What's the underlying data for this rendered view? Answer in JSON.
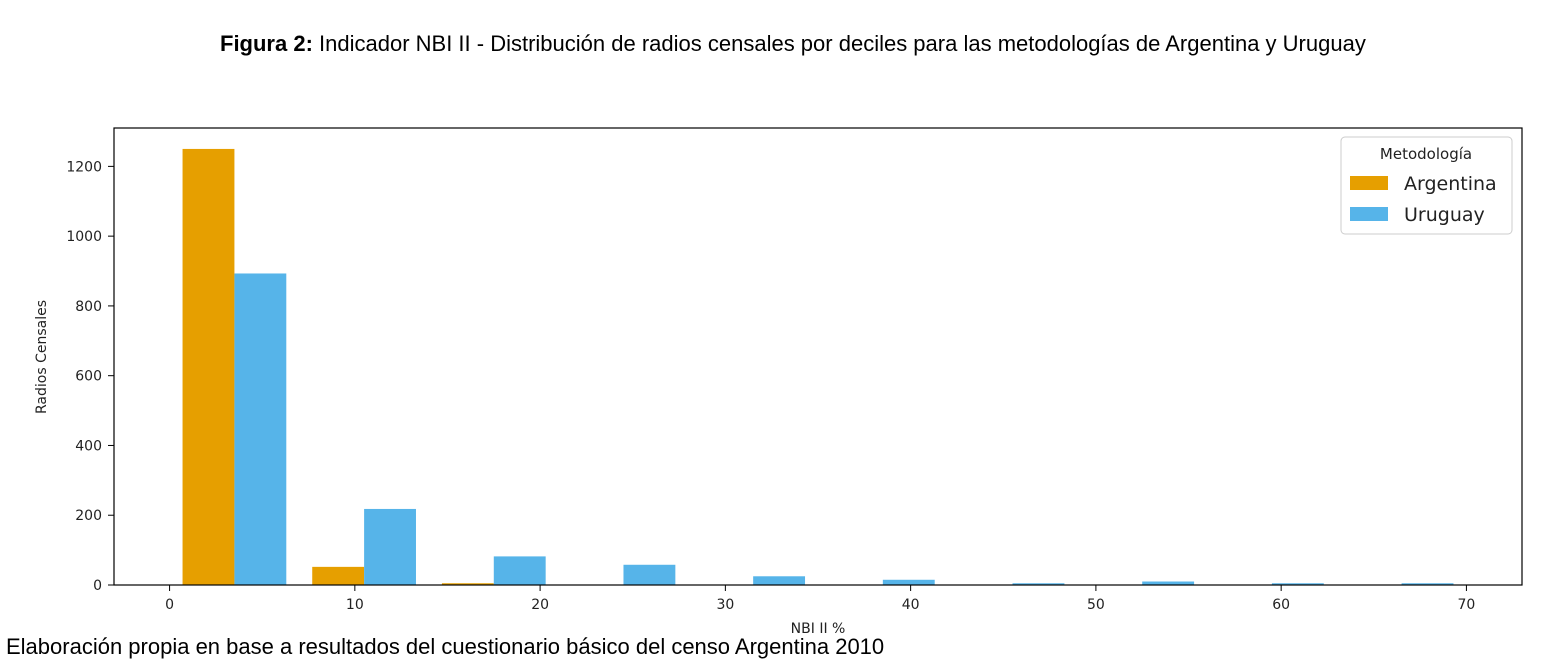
{
  "caption": {
    "figure_label": "Figura 2:",
    "figure_title": "Indicador NBI II - Distribución de radios censales por deciles para las metodologías de Argentina y Uruguay",
    "source_note": "Elaboración propia en base a resultados del cuestionario básico del censo Argentina 2010"
  },
  "chart_data": {
    "type": "bar",
    "xlabel": "NBI II %",
    "ylabel": "Radios Censales",
    "xlim": [
      -3,
      73
    ],
    "ylim": [
      0,
      1310
    ],
    "xticks": [
      0,
      10,
      20,
      30,
      40,
      50,
      60,
      70
    ],
    "yticks": [
      0,
      200,
      400,
      600,
      800,
      1000,
      1200
    ],
    "grid": false,
    "legend": {
      "title": "Metodología",
      "position": "top-right"
    },
    "series": [
      {
        "name": "Argentina",
        "color": "#e69f00",
        "bins": [
          [
            0.7,
            3.5
          ],
          [
            7.7,
            10.5
          ],
          [
            14.7,
            17.5
          ]
        ],
        "values": [
          1250,
          52,
          5
        ]
      },
      {
        "name": "Uruguay",
        "color": "#56b4e9",
        "bins": [
          [
            3.5,
            6.3
          ],
          [
            10.5,
            13.3
          ],
          [
            17.5,
            20.3
          ],
          [
            24.5,
            27.3
          ],
          [
            31.5,
            34.3
          ],
          [
            38.5,
            41.3
          ],
          [
            45.5,
            48.3
          ],
          [
            52.5,
            55.3
          ],
          [
            59.5,
            62.3
          ],
          [
            66.5,
            69.3
          ]
        ],
        "values": [
          893,
          218,
          82,
          58,
          25,
          15,
          5,
          10,
          5,
          5
        ]
      }
    ]
  }
}
